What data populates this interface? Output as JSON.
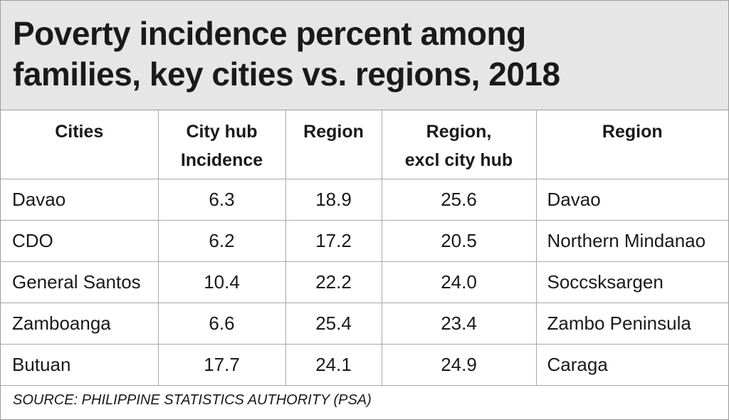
{
  "title_line1": "Poverty incidence percent among",
  "title_line2": "families, key cities vs. regions, 2018",
  "header": {
    "col1": "Cities",
    "col2_line1": "City hub",
    "col2_line2": "Incidence",
    "col3": "Region",
    "col4_line1": "Region,",
    "col4_line2": "excl city hub",
    "col5": "Region"
  },
  "chart_data": {
    "type": "table",
    "columns": [
      "Cities",
      "City hub Incidence",
      "Region",
      "Region, excl city hub",
      "Region"
    ],
    "rows": [
      [
        "Davao",
        "6.3",
        "18.9",
        "25.6",
        "Davao"
      ],
      [
        "CDO",
        "6.2",
        "17.2",
        "20.5",
        "Northern Mindanao"
      ],
      [
        "General Santos",
        "10.4",
        "22.2",
        "24.0",
        "Soccsksargen"
      ],
      [
        "Zamboanga",
        "6.6",
        "25.4",
        "23.4",
        "Zambo Peninsula"
      ],
      [
        "Butuan",
        "17.7",
        "24.1",
        "24.9",
        "Caraga"
      ]
    ]
  },
  "source": "SOURCE: PHILIPPINE STATISTICS AUTHORITY (PSA)"
}
